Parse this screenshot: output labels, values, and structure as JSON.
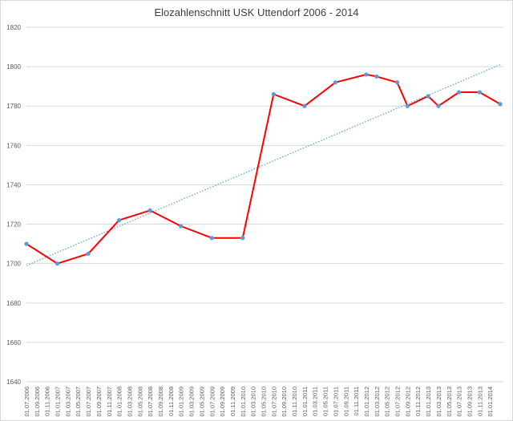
{
  "chart_data": {
    "type": "line",
    "title": "Elozahlenschnitt USK Uttendorf 2006 - 2014",
    "xlabel": "",
    "ylabel": "",
    "ylim": [
      1640,
      1820
    ],
    "yticks": [
      1640,
      1660,
      1680,
      1700,
      1720,
      1740,
      1760,
      1780,
      1800,
      1820
    ],
    "grid": true,
    "legend": "none",
    "x": [
      "01.07.2006",
      "01.09.2006",
      "01.11.2006",
      "01.01.2007",
      "01.03.2007",
      "01.05.2007",
      "01.07.2007",
      "01.09.2007",
      "01.11.2007",
      "01.01.2008",
      "01.03.2008",
      "01.05.2008",
      "01.07.2008",
      "01.09.2008",
      "01.11.2008",
      "01.01.2009",
      "01.03.2009",
      "01.05.2009",
      "01.07.2009",
      "01.09.2009",
      "01.11.2009",
      "01.01.2010",
      "01.03.2010",
      "01.05.2010",
      "01.07.2010",
      "01.09.2010",
      "01.11.2010",
      "01.01.2011",
      "01.03.2011",
      "01.05.2011",
      "01.07.2011",
      "01.09.2011",
      "01.11.2011",
      "01.01.2012",
      "01.03.2012",
      "01.05.2012",
      "01.07.2012",
      "01.09.2012",
      "01.11.2012",
      "01.01.2013",
      "01.03.2013",
      "01.05.2013",
      "01.07.2013",
      "01.09.2013",
      "01.11.2013",
      "01.01.2014"
    ],
    "series": [
      {
        "name": "",
        "color": "#ff0000",
        "marker_color": "#5b9bd5",
        "points": [
          {
            "x": "01.07.2006",
            "y": 1710
          },
          {
            "x": "01.01.2007",
            "y": 1700
          },
          {
            "x": "01.07.2007",
            "y": 1705
          },
          {
            "x": "01.01.2008",
            "y": 1722
          },
          {
            "x": "01.07.2008",
            "y": 1727
          },
          {
            "x": "01.01.2009",
            "y": 1719
          },
          {
            "x": "01.07.2009",
            "y": 1713
          },
          {
            "x": "01.01.2010",
            "y": 1713
          },
          {
            "x": "01.07.2010",
            "y": 1786
          },
          {
            "x": "01.01.2011",
            "y": 1780
          },
          {
            "x": "01.07.2011",
            "y": 1792
          },
          {
            "x": "01.01.2012",
            "y": 1796
          },
          {
            "x": "01.03.2012",
            "y": 1795
          },
          {
            "x": "01.07.2012",
            "y": 1792
          },
          {
            "x": "01.09.2012",
            "y": 1780
          },
          {
            "x": "01.01.2013",
            "y": 1785
          },
          {
            "x": "01.03.2013",
            "y": 1780
          },
          {
            "x": "01.07.2013",
            "y": 1787
          },
          {
            "x": "01.11.2013",
            "y": 1787
          },
          {
            "x": "01.03.2014",
            "y": 1781
          }
        ]
      }
    ],
    "trendline": {
      "type": "linear",
      "style": "dotted",
      "color": "#5b9bd5",
      "start": {
        "x": "01.07.2006",
        "y": 1699
      },
      "end": {
        "x": "01.03.2014",
        "y": 1801
      }
    }
  }
}
